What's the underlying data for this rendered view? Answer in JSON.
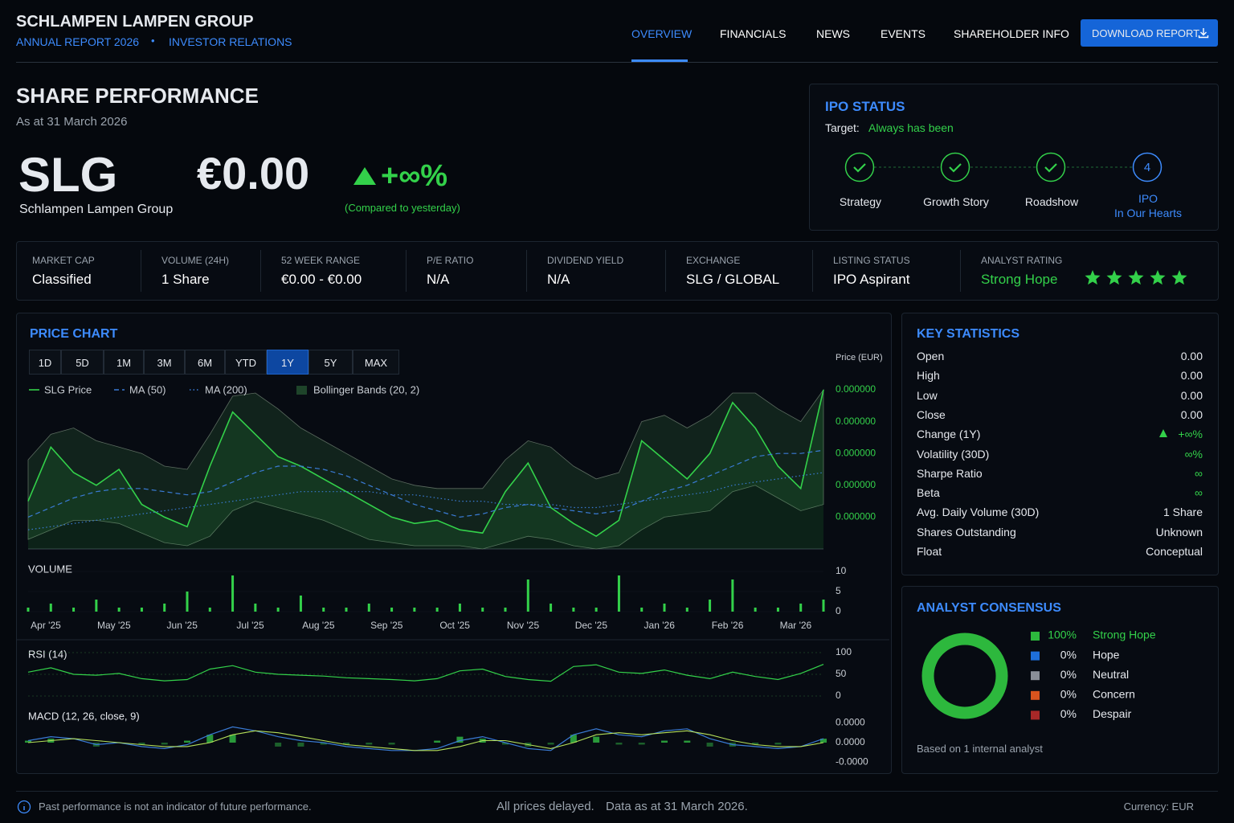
{
  "header": {
    "company": "SCHLAMPEN LAMPEN GROUP",
    "report": "ANNUAL REPORT 2026",
    "section": "INVESTOR RELATIONS"
  },
  "nav": {
    "items": [
      "OVERVIEW",
      "FINANCIALS",
      "NEWS",
      "EVENTS",
      "SHAREHOLDER INFO"
    ],
    "active": 0,
    "download": "DOWNLOAD REPORT"
  },
  "share": {
    "title": "SHARE PERFORMANCE",
    "as_at": "As at 31 March 2026",
    "ticker": "SLG",
    "name": "Schlampen Lampen Group",
    "price": "€0.00",
    "change": "+∞%",
    "change_note": "(Compared to yesterday)"
  },
  "ipo": {
    "title": "IPO STATUS",
    "target_label": "Target:",
    "target": "Always has been",
    "steps": [
      {
        "label": "Strategy"
      },
      {
        "label": "Growth Story"
      },
      {
        "label": "Roadshow"
      },
      {
        "number": "4",
        "label": "IPO",
        "label2": "In Our Hearts"
      }
    ]
  },
  "metrics": [
    {
      "label": "MARKET CAP",
      "value": "Classified"
    },
    {
      "label": "VOLUME (24H)",
      "value": "1 Share"
    },
    {
      "label": "52 WEEK RANGE",
      "value": "€0.00 - €0.00"
    },
    {
      "label": "P/E RATIO",
      "value": "N/A"
    },
    {
      "label": "DIVIDEND YIELD",
      "value": "N/A"
    },
    {
      "label": "EXCHANGE",
      "value": "SLG / GLOBAL"
    },
    {
      "label": "LISTING STATUS",
      "value": "IPO Aspirant"
    },
    {
      "label": "ANALYST RATING",
      "value": "Strong Hope"
    }
  ],
  "price_panel": {
    "title": "PRICE CHART",
    "ranges": [
      "1D",
      "5D",
      "1M",
      "3M",
      "6M",
      "YTD",
      "1Y",
      "5Y",
      "MAX"
    ],
    "active_range": 6
  },
  "key_stats": {
    "title": "KEY STATISTICS",
    "rows": [
      [
        "Open",
        "0.00"
      ],
      [
        "High",
        "0.00"
      ],
      [
        "Low",
        "0.00"
      ],
      [
        "Close",
        "0.00"
      ],
      [
        "Change (1Y)",
        "+∞%"
      ],
      [
        "Volatility (30D)",
        "∞%"
      ],
      [
        "Sharpe Ratio",
        "∞"
      ],
      [
        "Beta",
        "∞"
      ],
      [
        "Avg. Daily Volume (30D)",
        "1 Share"
      ],
      [
        "Shares Outstanding",
        "Unknown"
      ],
      [
        "Float",
        "Conceptual"
      ]
    ]
  },
  "consensus": {
    "title": "ANALYST CONSENSUS",
    "note": "Based on 1 internal analyst"
  },
  "footer": {
    "disclaimer": "Past performance is not an indicator of future performance.",
    "delayed": "All prices delayed.",
    "data_as_at": "Data as at 31 March 2026.",
    "currency": "Currency: EUR"
  },
  "chart_data": [
    {
      "type": "line",
      "y_label": "Price (EUR)",
      "ylim": [
        8e-08,
        4.8e-07
      ],
      "yticks": [
        {
          "value": 4.8e-07,
          "label": "0.000000"
        },
        {
          "value": 4e-07,
          "label": "0.000000"
        },
        {
          "value": 3.2e-07,
          "label": "0.000000"
        },
        {
          "value": 2.4e-07,
          "label": "0.000000"
        },
        {
          "value": 1.6e-07,
          "label": "0.000000"
        }
      ],
      "grid": false,
      "series": [
        {
          "name": "SLG Price",
          "color": "#33d14a",
          "line_style": "solid",
          "values": [
            2e-07,
            3.36e-07,
            2.72e-07,
            2.4e-07,
            2.8e-07,
            1.92e-07,
            1.6e-07,
            1.36e-07,
            2.88e-07,
            4.24e-07,
            3.68e-07,
            3.12e-07,
            2.88e-07,
            2.56e-07,
            2.24e-07,
            1.92e-07,
            1.6e-07,
            1.44e-07,
            1.52e-07,
            1.28e-07,
            1.2e-07,
            2.24e-07,
            2.96e-07,
            1.84e-07,
            1.44e-07,
            1.12e-07,
            1.52e-07,
            3.52e-07,
            3.04e-07,
            2.56e-07,
            3.2e-07,
            4.48e-07,
            3.84e-07,
            2.88e-07,
            2.32e-07,
            4.8e-07
          ]
        },
        {
          "name": "MA (50)",
          "color": "#3a7bd5",
          "line_style": "dashed",
          "values": [
            1.6e-07,
            1.84e-07,
            2.08e-07,
            2.24e-07,
            2.32e-07,
            2.32e-07,
            2.24e-07,
            2.16e-07,
            2.24e-07,
            2.48e-07,
            2.72e-07,
            2.88e-07,
            2.88e-07,
            2.8e-07,
            2.64e-07,
            2.4e-07,
            2.16e-07,
            1.92e-07,
            1.76e-07,
            1.6e-07,
            1.68e-07,
            1.84e-07,
            1.92e-07,
            1.84e-07,
            1.76e-07,
            1.68e-07,
            1.76e-07,
            2e-07,
            2.24e-07,
            2.4e-07,
            2.64e-07,
            2.88e-07,
            3.12e-07,
            3.2e-07,
            3.2e-07,
            3.28e-07
          ]
        },
        {
          "name": "MA (200)",
          "color": "#3a7bd5",
          "line_style": "dotted",
          "values": [
            1.28e-07,
            1.36e-07,
            1.44e-07,
            1.52e-07,
            1.6e-07,
            1.68e-07,
            1.76e-07,
            1.84e-07,
            1.92e-07,
            2e-07,
            2.08e-07,
            2.16e-07,
            2.24e-07,
            2.24e-07,
            2.24e-07,
            2.24e-07,
            2.16e-07,
            2.16e-07,
            2.08e-07,
            2e-07,
            2e-07,
            1.92e-07,
            1.92e-07,
            1.92e-07,
            1.84e-07,
            1.84e-07,
            1.92e-07,
            2e-07,
            2.08e-07,
            2.16e-07,
            2.24e-07,
            2.4e-07,
            2.48e-07,
            2.56e-07,
            2.64e-07,
            2.72e-07
          ]
        }
      ],
      "bands": {
        "name": "Bollinger Bands (20, 2)",
        "color": "#2f6b3a",
        "upper": [
          3.04e-07,
          3.68e-07,
          3.84e-07,
          3.52e-07,
          3.36e-07,
          3.2e-07,
          2.88e-07,
          2.8e-07,
          3.68e-07,
          4.64e-07,
          4.72e-07,
          4.32e-07,
          3.84e-07,
          3.52e-07,
          3.2e-07,
          2.88e-07,
          2.56e-07,
          2.4e-07,
          2.32e-07,
          2.32e-07,
          2.32e-07,
          3.04e-07,
          3.52e-07,
          3.36e-07,
          2.88e-07,
          2.56e-07,
          2.72e-07,
          4e-07,
          4.16e-07,
          3.84e-07,
          4.16e-07,
          4.72e-07,
          4.72e-07,
          4.32e-07,
          4e-07,
          4.8e-07
        ],
        "lower": [
          1.04e-07,
          1.28e-07,
          1.52e-07,
          1.52e-07,
          1.44e-07,
          1.2e-07,
          9.6e-08,
          8.8e-08,
          1.12e-07,
          1.76e-07,
          2e-07,
          1.84e-07,
          1.68e-07,
          1.52e-07,
          1.28e-07,
          1.04e-07,
          9.6e-08,
          8.8e-08,
          8.8e-08,
          8.8e-08,
          8e-08,
          9.6e-08,
          1.12e-07,
          1.04e-07,
          8.8e-08,
          8e-08,
          8.8e-08,
          1.28e-07,
          1.6e-07,
          1.68e-07,
          1.76e-07,
          2.24e-07,
          2.4e-07,
          2.08e-07,
          1.76e-07,
          1.92e-07
        ]
      }
    },
    {
      "type": "bar",
      "title": "VOLUME",
      "color": "#33d14a",
      "ylim": [
        0,
        10
      ],
      "yticks": [
        0,
        5,
        10
      ],
      "categories": [
        "Apr '25",
        null,
        null,
        "May '25",
        null,
        null,
        "Jun '25",
        null,
        null,
        "Jul '25",
        null,
        null,
        "Aug '25",
        null,
        null,
        "Sep '25",
        null,
        null,
        "Oct '25",
        null,
        null,
        "Nov '25",
        null,
        null,
        "Dec '25",
        null,
        null,
        "Jan '26",
        null,
        null,
        "Feb '26",
        null,
        null,
        "Mar '26",
        null,
        null
      ],
      "values": [
        1,
        2,
        1,
        3,
        1,
        1,
        2,
        5,
        1,
        9,
        2,
        1,
        4,
        1,
        1,
        2,
        1,
        1,
        1,
        2,
        1,
        1,
        8,
        2,
        1,
        1,
        9,
        1,
        2,
        1,
        3,
        8,
        1,
        1,
        2,
        3
      ]
    },
    {
      "type": "line",
      "title": "RSI (14)",
      "color": "#33d14a",
      "ylim": [
        0,
        100
      ],
      "yticks": [
        0,
        50,
        100
      ],
      "values": [
        55,
        65,
        50,
        48,
        52,
        40,
        35,
        38,
        62,
        70,
        55,
        50,
        48,
        46,
        42,
        40,
        38,
        35,
        40,
        58,
        62,
        45,
        38,
        34,
        68,
        72,
        55,
        52,
        60,
        48,
        40,
        55,
        45,
        38,
        52,
        73
      ]
    },
    {
      "type": "macd",
      "title": "MACD (12, 26, close, 9)",
      "macd_color": "#3a7bd5",
      "signal_color": "#b5e05a",
      "histogram_color": "#2ea83f",
      "ylim": [
        -1.1e-05,
        1.1e-05
      ],
      "yticks": [
        {
          "value": 1e-05,
          "label": "0.0000"
        },
        {
          "value": 0,
          "label": "0.0000"
        },
        {
          "value": -1e-05,
          "label": "-0.0000"
        }
      ],
      "macd": [
        1e-06,
        3e-06,
        2e-06,
        -1e-06,
        0,
        -2e-06,
        -3e-06,
        -1e-06,
        4e-06,
        8e-06,
        6e-06,
        3e-06,
        1e-06,
        0,
        -2e-06,
        -3e-06,
        -4e-06,
        -4e-06,
        -3e-06,
        1e-06,
        3e-06,
        0,
        -3e-06,
        -4e-06,
        4e-06,
        7e-06,
        4e-06,
        3e-06,
        6e-06,
        7e-06,
        2e-06,
        -1e-06,
        -2e-06,
        -3e-06,
        -2e-06,
        2e-06
      ],
      "signal": [
        0,
        1e-06,
        2e-06,
        1e-06,
        0,
        -1e-06,
        -2e-06,
        -2e-06,
        0,
        4e-06,
        6e-06,
        5e-06,
        3e-06,
        1e-06,
        -1e-06,
        -2e-06,
        -3e-06,
        -4e-06,
        -4e-06,
        -2e-06,
        1e-06,
        1e-06,
        -1e-06,
        -3e-06,
        0,
        4e-06,
        5e-06,
        4e-06,
        5e-06,
        6e-06,
        4e-06,
        1e-06,
        -1e-06,
        -2e-06,
        -2e-06,
        0
      ],
      "histogram": [
        1e-06,
        2e-06,
        0,
        -2e-06,
        0,
        -1e-06,
        -1e-06,
        1e-06,
        4e-06,
        4e-06,
        0,
        -2e-06,
        -2e-06,
        -1e-06,
        -1e-06,
        -1e-06,
        -1e-06,
        0,
        1e-06,
        3e-06,
        2e-06,
        -1e-06,
        -2e-06,
        -1e-06,
        4e-06,
        3e-06,
        -1e-06,
        -1e-06,
        1e-06,
        1e-06,
        -2e-06,
        -2e-06,
        -1e-06,
        -1e-06,
        0,
        2e-06
      ]
    },
    {
      "type": "donut",
      "categories": [
        "Strong Hope",
        "Hope",
        "Neutral",
        "Concern",
        "Despair"
      ],
      "values": [
        100,
        0,
        0,
        0,
        0
      ],
      "value_labels": [
        "100%",
        "0%",
        "0%",
        "0%",
        "0%"
      ],
      "colors": [
        "#2db83d",
        "#1e6fd9",
        "#8a8f98",
        "#d9541e",
        "#a82828"
      ]
    }
  ]
}
